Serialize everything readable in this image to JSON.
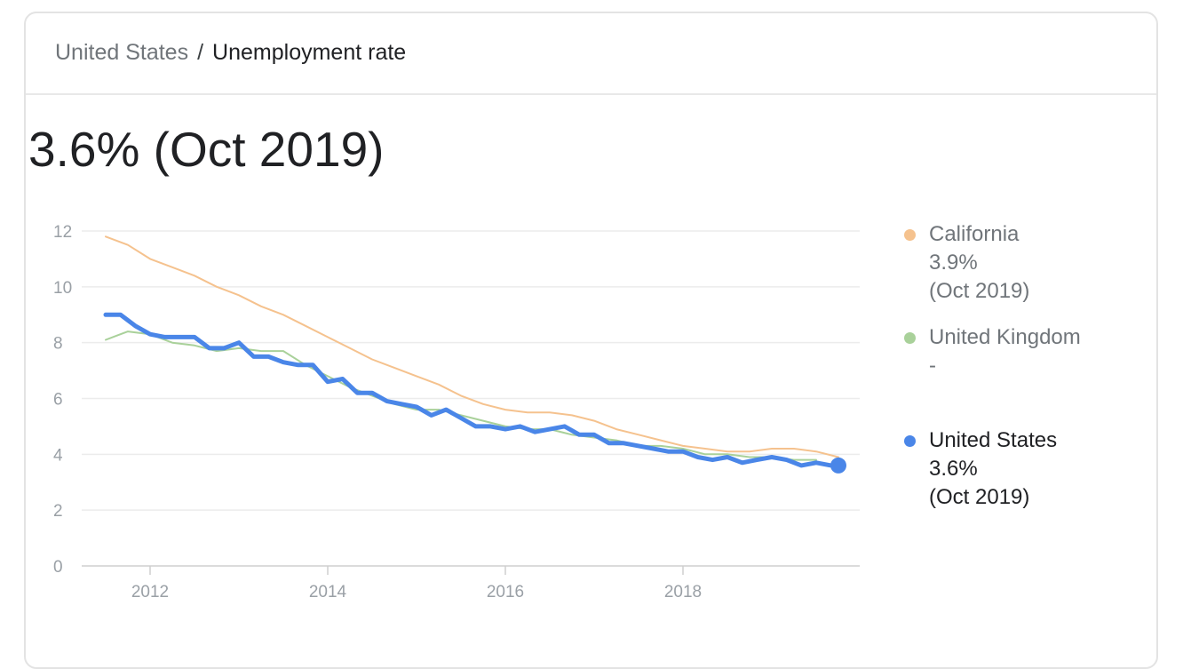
{
  "breadcrumb": {
    "parent": "United States",
    "separator": "/",
    "current": "Unemployment rate"
  },
  "headline": "3.6% (Oct 2019)",
  "legend": [
    {
      "name": "California",
      "value": "3.9%",
      "date": "(Oct 2019)",
      "color": "#f5c28e"
    },
    {
      "name": "United Kingdom",
      "value": "-",
      "date": "",
      "color": "#a9d19a"
    },
    {
      "name": "United States",
      "value": "3.6%",
      "date": "(Oct 2019)",
      "color": "#4a86e8"
    }
  ],
  "chart_data": {
    "type": "line",
    "xlim": [
      2011.5,
      2019.833
    ],
    "ylim": [
      0,
      12
    ],
    "x_ticks": [
      2012,
      2014,
      2016,
      2018
    ],
    "y_ticks": [
      0,
      2,
      4,
      6,
      8,
      10,
      12
    ],
    "grid": true,
    "legend_position": "right",
    "series": [
      {
        "name": "California",
        "color": "#f5c28e",
        "points": [
          [
            2011.5,
            11.8
          ],
          [
            2011.75,
            11.5
          ],
          [
            2012.0,
            11.0
          ],
          [
            2012.25,
            10.7
          ],
          [
            2012.5,
            10.4
          ],
          [
            2012.75,
            10.0
          ],
          [
            2013.0,
            9.7
          ],
          [
            2013.25,
            9.3
          ],
          [
            2013.5,
            9.0
          ],
          [
            2013.75,
            8.6
          ],
          [
            2014.0,
            8.2
          ],
          [
            2014.25,
            7.8
          ],
          [
            2014.5,
            7.4
          ],
          [
            2014.75,
            7.1
          ],
          [
            2015.0,
            6.8
          ],
          [
            2015.25,
            6.5
          ],
          [
            2015.5,
            6.1
          ],
          [
            2015.75,
            5.8
          ],
          [
            2016.0,
            5.6
          ],
          [
            2016.25,
            5.5
          ],
          [
            2016.5,
            5.5
          ],
          [
            2016.75,
            5.4
          ],
          [
            2017.0,
            5.2
          ],
          [
            2017.25,
            4.9
          ],
          [
            2017.5,
            4.7
          ],
          [
            2017.75,
            4.5
          ],
          [
            2018.0,
            4.3
          ],
          [
            2018.25,
            4.2
          ],
          [
            2018.5,
            4.1
          ],
          [
            2018.75,
            4.1
          ],
          [
            2019.0,
            4.2
          ],
          [
            2019.25,
            4.2
          ],
          [
            2019.5,
            4.1
          ],
          [
            2019.75,
            3.9
          ]
        ]
      },
      {
        "name": "United Kingdom",
        "color": "#a9d19a",
        "points": [
          [
            2011.5,
            8.1
          ],
          [
            2011.75,
            8.4
          ],
          [
            2012.0,
            8.3
          ],
          [
            2012.25,
            8.0
          ],
          [
            2012.5,
            7.9
          ],
          [
            2012.75,
            7.7
          ],
          [
            2013.0,
            7.8
          ],
          [
            2013.25,
            7.7
          ],
          [
            2013.5,
            7.7
          ],
          [
            2013.75,
            7.2
          ],
          [
            2014.0,
            6.8
          ],
          [
            2014.25,
            6.4
          ],
          [
            2014.5,
            6.1
          ],
          [
            2014.75,
            5.8
          ],
          [
            2015.0,
            5.6
          ],
          [
            2015.25,
            5.6
          ],
          [
            2015.5,
            5.4
          ],
          [
            2015.75,
            5.2
          ],
          [
            2016.0,
            5.0
          ],
          [
            2016.25,
            4.9
          ],
          [
            2016.5,
            4.9
          ],
          [
            2016.75,
            4.7
          ],
          [
            2017.0,
            4.6
          ],
          [
            2017.25,
            4.5
          ],
          [
            2017.5,
            4.3
          ],
          [
            2017.75,
            4.3
          ],
          [
            2018.0,
            4.2
          ],
          [
            2018.25,
            4.0
          ],
          [
            2018.5,
            4.0
          ],
          [
            2018.75,
            3.9
          ],
          [
            2019.0,
            3.9
          ],
          [
            2019.25,
            3.8
          ],
          [
            2019.5,
            3.8
          ]
        ]
      },
      {
        "name": "United States",
        "color": "#4a86e8",
        "points": [
          [
            2011.5,
            9.0
          ],
          [
            2011.667,
            9.0
          ],
          [
            2011.833,
            8.6
          ],
          [
            2012.0,
            8.3
          ],
          [
            2012.167,
            8.2
          ],
          [
            2012.333,
            8.2
          ],
          [
            2012.5,
            8.2
          ],
          [
            2012.667,
            7.8
          ],
          [
            2012.833,
            7.8
          ],
          [
            2013.0,
            8.0
          ],
          [
            2013.167,
            7.5
          ],
          [
            2013.333,
            7.5
          ],
          [
            2013.5,
            7.3
          ],
          [
            2013.667,
            7.2
          ],
          [
            2013.833,
            7.2
          ],
          [
            2014.0,
            6.6
          ],
          [
            2014.167,
            6.7
          ],
          [
            2014.333,
            6.2
          ],
          [
            2014.5,
            6.2
          ],
          [
            2014.667,
            5.9
          ],
          [
            2014.833,
            5.8
          ],
          [
            2015.0,
            5.7
          ],
          [
            2015.167,
            5.4
          ],
          [
            2015.333,
            5.6
          ],
          [
            2015.5,
            5.3
          ],
          [
            2015.667,
            5.0
          ],
          [
            2015.833,
            5.0
          ],
          [
            2016.0,
            4.9
          ],
          [
            2016.167,
            5.0
          ],
          [
            2016.333,
            4.8
          ],
          [
            2016.5,
            4.9
          ],
          [
            2016.667,
            5.0
          ],
          [
            2016.833,
            4.7
          ],
          [
            2017.0,
            4.7
          ],
          [
            2017.167,
            4.4
          ],
          [
            2017.333,
            4.4
          ],
          [
            2017.5,
            4.3
          ],
          [
            2017.667,
            4.2
          ],
          [
            2017.833,
            4.1
          ],
          [
            2018.0,
            4.1
          ],
          [
            2018.167,
            3.9
          ],
          [
            2018.333,
            3.8
          ],
          [
            2018.5,
            3.9
          ],
          [
            2018.667,
            3.7
          ],
          [
            2018.833,
            3.8
          ],
          [
            2019.0,
            3.9
          ],
          [
            2019.167,
            3.8
          ],
          [
            2019.333,
            3.6
          ],
          [
            2019.5,
            3.7
          ],
          [
            2019.667,
            3.6
          ],
          [
            2019.75,
            3.6
          ]
        ]
      }
    ]
  }
}
